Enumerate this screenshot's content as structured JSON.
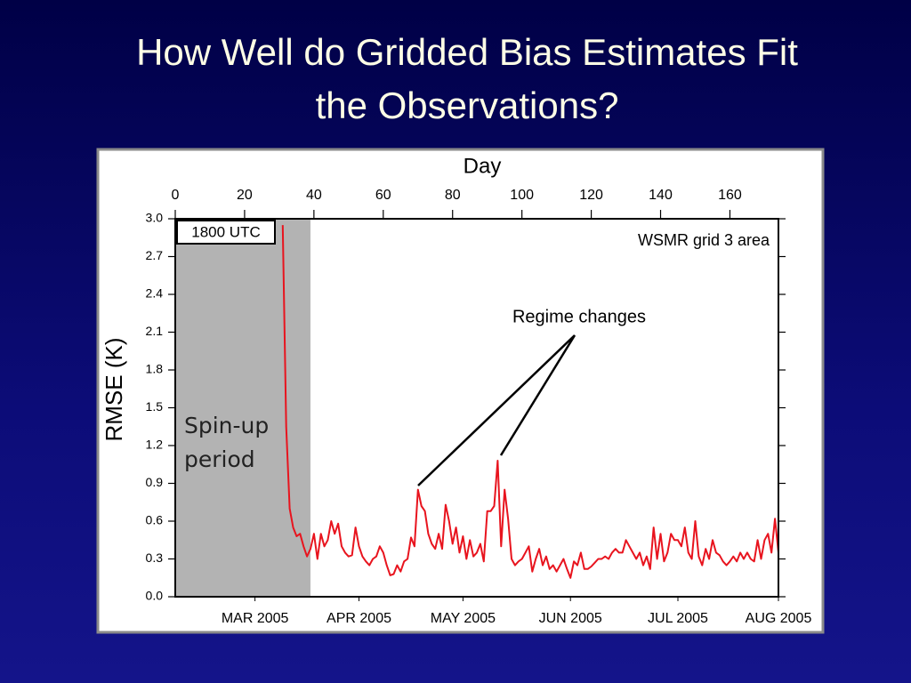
{
  "title": "How Well do Gridded Bias Estimates Fit the Observations?",
  "chart_data": {
    "type": "line",
    "xlabel": "Day",
    "ylabel": "RMSE (K)",
    "xlim": [
      0,
      174
    ],
    "xticks": [
      0,
      20,
      40,
      60,
      80,
      100,
      120,
      140,
      160
    ],
    "x2ticks": [
      {
        "value": 23,
        "label": "MAR 2005"
      },
      {
        "value": 53,
        "label": "APR 2005"
      },
      {
        "value": 83,
        "label": "MAY 2005"
      },
      {
        "value": 114,
        "label": "JUN 2005"
      },
      {
        "value": 145,
        "label": "JUL 2005"
      },
      {
        "value": 174,
        "label": "AUG 2005"
      }
    ],
    "ylim": [
      0,
      3
    ],
    "yticks": [
      {
        "value": 0,
        "label": "0.0"
      },
      0.3,
      0.6,
      0.9,
      1.2,
      1.5,
      1.8,
      2.1,
      2.4,
      2.7,
      {
        "value": 3,
        "label": "3.0"
      }
    ],
    "shaded_region": {
      "x": [
        0,
        39
      ],
      "label": [
        "Spin-up",
        "period"
      ],
      "color": "#b3b3b3"
    },
    "box_label": "1800 UTC",
    "corner_label": "WSMR grid 3 area",
    "annotation": "Regime changes",
    "series": [
      {
        "name": "RMSE",
        "color": "#e8141e",
        "x": [
          31,
          32,
          33,
          34,
          35,
          36,
          37,
          38,
          39,
          40,
          41,
          42,
          43,
          44,
          45,
          46,
          47,
          48,
          49,
          50,
          51,
          52,
          53,
          54,
          55,
          56,
          57,
          58,
          59,
          60,
          61,
          62,
          63,
          64,
          65,
          66,
          67,
          68,
          69,
          70,
          71,
          72,
          73,
          74,
          75,
          76,
          77,
          78,
          79,
          80,
          81,
          82,
          83,
          84,
          85,
          86,
          87,
          88,
          89,
          90,
          91,
          92,
          93,
          94,
          95,
          96,
          97,
          98,
          99,
          100,
          101,
          102,
          103,
          104,
          105,
          106,
          107,
          108,
          109,
          110,
          111,
          112,
          113,
          114,
          115,
          116,
          117,
          118,
          119,
          120,
          121,
          122,
          123,
          124,
          125,
          126,
          127,
          128,
          129,
          130,
          131,
          132,
          133,
          134,
          135,
          136,
          137,
          138,
          139,
          140,
          141,
          142,
          143,
          144,
          145,
          146,
          147,
          148,
          149,
          150,
          151,
          152,
          153,
          154,
          155,
          156,
          157,
          158,
          159,
          160,
          161,
          162,
          163,
          164,
          165,
          166,
          167,
          168,
          169,
          170,
          171,
          172,
          173,
          174
        ],
        "values": [
          2.95,
          1.35,
          0.7,
          0.55,
          0.48,
          0.5,
          0.4,
          0.32,
          0.38,
          0.5,
          0.3,
          0.5,
          0.4,
          0.45,
          0.6,
          0.5,
          0.58,
          0.4,
          0.35,
          0.32,
          0.33,
          0.55,
          0.4,
          0.32,
          0.28,
          0.25,
          0.3,
          0.32,
          0.4,
          0.35,
          0.25,
          0.17,
          0.18,
          0.25,
          0.2,
          0.28,
          0.3,
          0.47,
          0.4,
          0.85,
          0.72,
          0.68,
          0.5,
          0.42,
          0.38,
          0.5,
          0.38,
          0.73,
          0.6,
          0.42,
          0.55,
          0.35,
          0.48,
          0.3,
          0.45,
          0.32,
          0.35,
          0.42,
          0.28,
          0.68,
          0.68,
          0.72,
          1.08,
          0.4,
          0.85,
          0.62,
          0.3,
          0.25,
          0.28,
          0.3,
          0.35,
          0.4,
          0.2,
          0.3,
          0.38,
          0.25,
          0.32,
          0.22,
          0.25,
          0.2,
          0.25,
          0.3,
          0.22,
          0.15,
          0.28,
          0.25,
          0.35,
          0.22,
          0.22,
          0.24,
          0.27,
          0.3,
          0.3,
          0.32,
          0.3,
          0.35,
          0.38,
          0.35,
          0.35,
          0.45,
          0.4,
          0.35,
          0.3,
          0.35,
          0.25,
          0.32,
          0.22,
          0.55,
          0.3,
          0.5,
          0.28,
          0.35,
          0.5,
          0.45,
          0.45,
          0.4,
          0.55,
          0.35,
          0.3,
          0.6,
          0.32,
          0.25,
          0.38,
          0.3,
          0.45,
          0.35,
          0.33,
          0.28,
          0.25,
          0.28,
          0.32,
          0.28,
          0.35,
          0.3,
          0.35,
          0.3,
          0.28,
          0.45,
          0.3,
          0.45,
          0.5,
          0.35,
          0.62,
          0.35
        ]
      }
    ]
  }
}
